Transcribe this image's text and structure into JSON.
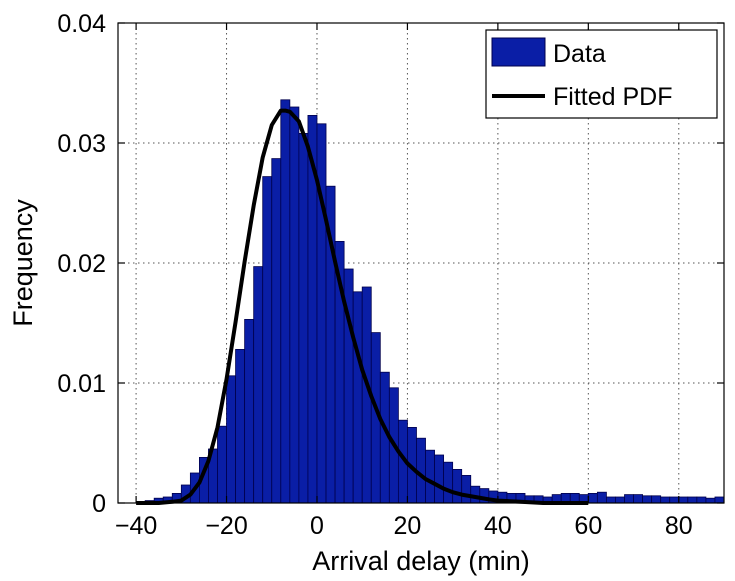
{
  "chart_data": {
    "type": "bar",
    "title": "",
    "xlabel": "Arrival delay (min)",
    "ylabel": "Frequency",
    "xlim": [
      -44,
      90
    ],
    "ylim": [
      0,
      0.04
    ],
    "xticks": [
      -40,
      -20,
      0,
      20,
      40,
      60,
      80
    ],
    "xtick_labels": [
      "−40",
      "−20",
      "0",
      "20",
      "40",
      "60",
      "80"
    ],
    "yticks": [
      0,
      0.01,
      0.02,
      0.03,
      0.04
    ],
    "ytick_labels": [
      "0",
      "0.01",
      "0.02",
      "0.03",
      "0.04"
    ],
    "grid": true,
    "legend_position": "top-right",
    "colors": {
      "bar_fill": "#0a1ea6",
      "bar_edge": "#00004d",
      "curve": "#000000"
    },
    "series": [
      {
        "name": "Data",
        "type": "histogram",
        "bin_width": 2,
        "bin_centers": [
          -39,
          -37,
          -35,
          -33,
          -31,
          -29,
          -27,
          -25,
          -23,
          -21,
          -19,
          -17,
          -15,
          -13,
          -11,
          -9,
          -7,
          -5,
          -3,
          -1,
          1,
          3,
          5,
          7,
          9,
          11,
          13,
          15,
          17,
          19,
          21,
          23,
          25,
          27,
          29,
          31,
          33,
          35,
          37,
          39,
          41,
          43,
          45,
          47,
          49,
          51,
          53,
          55,
          57,
          59,
          61,
          63,
          65,
          67,
          69,
          71,
          73,
          75,
          77,
          79,
          81,
          83,
          85,
          87,
          89
        ],
        "values": [
          0.0001,
          0.0002,
          0.0004,
          0.0005,
          0.0008,
          0.0015,
          0.0025,
          0.0038,
          0.0045,
          0.0064,
          0.0106,
          0.0128,
          0.0153,
          0.0197,
          0.0272,
          0.0287,
          0.0336,
          0.033,
          0.0308,
          0.0323,
          0.0316,
          0.0264,
          0.0218,
          0.0195,
          0.0176,
          0.018,
          0.0142,
          0.0109,
          0.0096,
          0.0069,
          0.0063,
          0.0054,
          0.0044,
          0.004,
          0.0034,
          0.0028,
          0.0023,
          0.0014,
          0.0012,
          0.001,
          0.0009,
          0.0008,
          0.0008,
          0.0006,
          0.0006,
          0.0005,
          0.0007,
          0.0008,
          0.0008,
          0.0007,
          0.0008,
          0.0009,
          0.0005,
          0.0005,
          0.0007,
          0.0007,
          0.0006,
          0.0006,
          0.0005,
          0.0005,
          0.0005,
          0.0005,
          0.0005,
          0.0004,
          0.0005
        ]
      },
      {
        "name": "Fitted PDF",
        "type": "line",
        "x": [
          -40,
          -35,
          -32,
          -30,
          -28,
          -26,
          -24,
          -22,
          -20,
          -18,
          -16,
          -14,
          -12,
          -10,
          -8,
          -7,
          -6,
          -4,
          -2,
          0,
          2,
          4,
          6,
          8,
          10,
          12,
          14,
          16,
          18,
          20,
          22,
          24,
          26,
          28,
          30,
          32,
          35,
          38,
          40,
          45,
          50,
          55,
          60
        ],
        "y": [
          0,
          0,
          0.0001,
          0.0002,
          0.0007,
          0.0017,
          0.0035,
          0.0063,
          0.0103,
          0.0151,
          0.0201,
          0.0248,
          0.0288,
          0.0315,
          0.0327,
          0.0327,
          0.0326,
          0.0318,
          0.0297,
          0.0269,
          0.0236,
          0.0201,
          0.0168,
          0.0138,
          0.0111,
          0.0089,
          0.007,
          0.0055,
          0.0043,
          0.0033,
          0.0026,
          0.002,
          0.0016,
          0.0012,
          0.0009,
          0.0007,
          0.0005,
          0.0003,
          0.0002,
          0.0001,
          0,
          0,
          0
        ]
      }
    ]
  }
}
